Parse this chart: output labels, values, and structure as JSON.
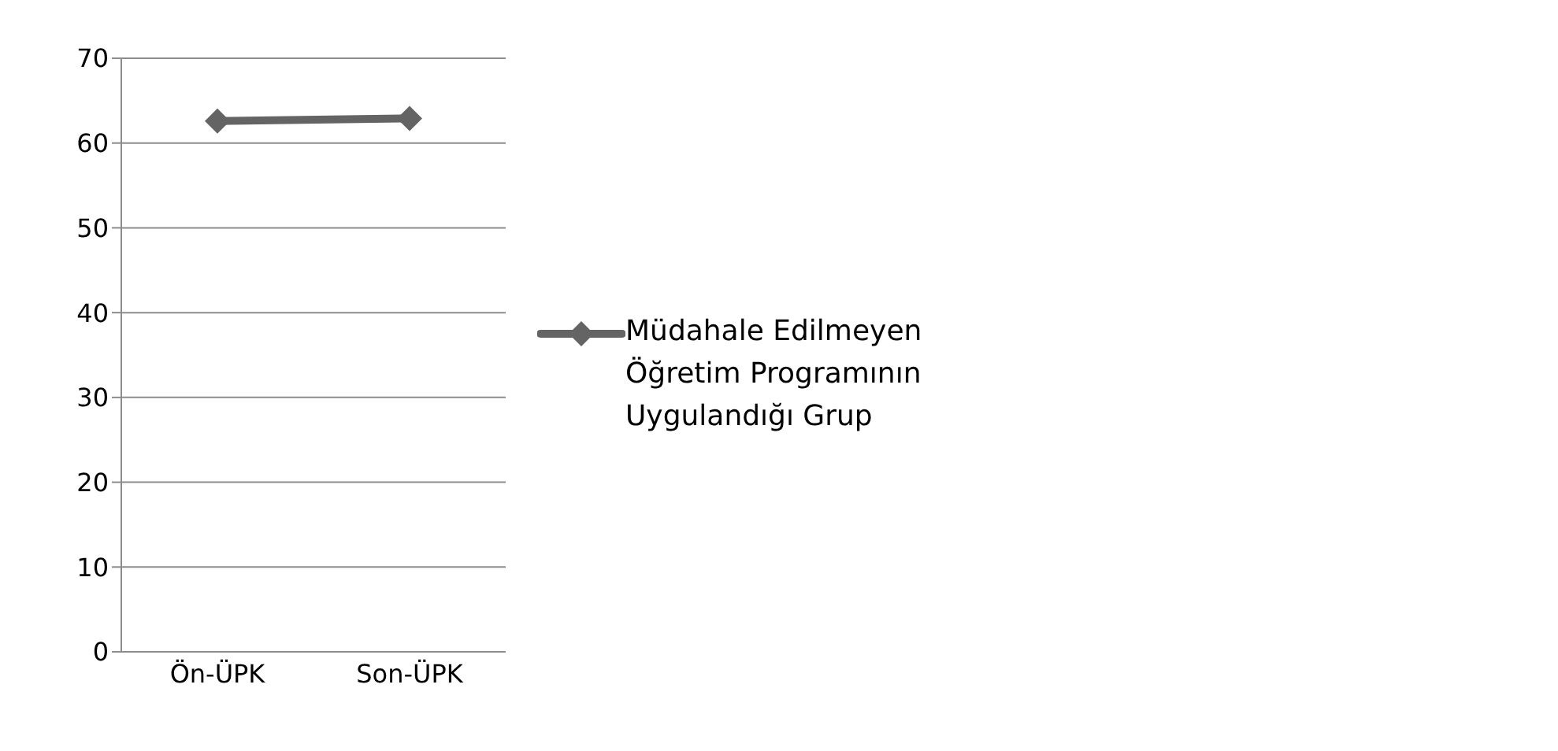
{
  "chart_data": {
    "type": "line",
    "categories": [
      "Ön-ÜPK",
      "Son-ÜPK"
    ],
    "series": [
      {
        "name": "Müdahale Edilmeyen Öğretim Programının Uygulandığı Grup",
        "color": "#646464",
        "values": [
          62.6,
          62.9
        ]
      }
    ],
    "ylim": [
      0,
      70
    ],
    "yticks": [
      0,
      10,
      20,
      30,
      40,
      50,
      60,
      70
    ],
    "grid": "y",
    "legend": "right",
    "marker": "diamond",
    "line_style": "solid"
  }
}
